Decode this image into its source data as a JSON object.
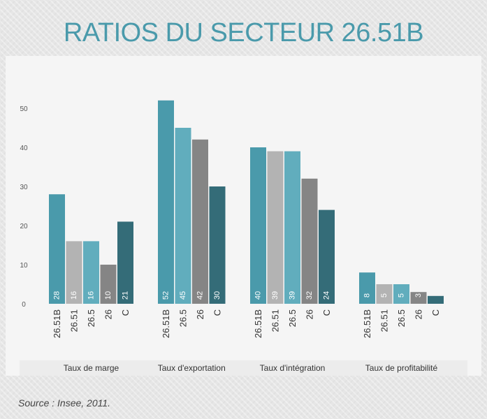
{
  "title": "RATIOS DU SECTEUR 26.51B",
  "source": "Source : Insee, 2011.",
  "colors": {
    "26.51B": "#4a9aab",
    "26.51": "#b3b3b3",
    "26.5": "#61adbd",
    "26": "#858585",
    "C": "#346c78"
  },
  "chart_data": {
    "type": "bar",
    "ylim": [
      0,
      55
    ],
    "yticks": [
      "0",
      "10",
      "20",
      "30",
      "40",
      "50"
    ],
    "groups": [
      {
        "label": "Taux  de marge",
        "categories": [
          "26.51B",
          "26.51",
          "26.5",
          "26",
          "C"
        ],
        "values": [
          28,
          16,
          16,
          10,
          21
        ],
        "labels": [
          "28",
          "16",
          "16",
          "10",
          "21"
        ]
      },
      {
        "label": "Taux  d'exportation",
        "categories": [
          "26.51B",
          "26.5",
          "26",
          "C"
        ],
        "values": [
          52,
          45,
          42,
          30
        ],
        "labels": [
          "52",
          "45",
          "42",
          "30"
        ]
      },
      {
        "label": "Taux  d'intégration",
        "categories": [
          "26.51B",
          "26.51",
          "26.5",
          "26",
          "C"
        ],
        "values": [
          40,
          39,
          39,
          32,
          24
        ],
        "labels": [
          "40",
          "39",
          "39",
          "32",
          "24"
        ]
      },
      {
        "label": "Taux  de  profitabilité",
        "categories": [
          "26.51B",
          "26.51",
          "26.5",
          "26",
          "C"
        ],
        "values": [
          8,
          5,
          5,
          3,
          2
        ],
        "labels": [
          "8",
          "5",
          "5",
          "3",
          ""
        ]
      }
    ]
  }
}
